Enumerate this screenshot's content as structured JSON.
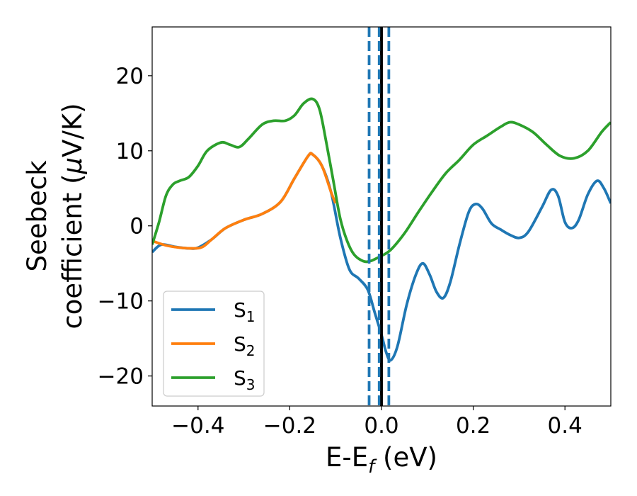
{
  "chart_data": {
    "type": "line",
    "xlabel": {
      "main": "E-E",
      "sub": "f",
      "rest": " (eV)"
    },
    "ylabel": {
      "line1": "Seebeck",
      "line2_pre": "coefficient  (",
      "mu": "μ",
      "line2_post": "V/K)"
    },
    "xlim": [
      -0.5,
      0.5
    ],
    "ylim": [
      -24,
      26.5
    ],
    "x_ticks": [
      -0.4,
      -0.2,
      0.0,
      0.2,
      0.4
    ],
    "x_tick_labels": [
      "−0.4",
      "−0.2",
      "0.0",
      "0.2",
      "0.4"
    ],
    "y_ticks": [
      -20,
      -10,
      0,
      10,
      20
    ],
    "y_tick_labels": [
      "−20",
      "−10",
      "0",
      "10",
      "20"
    ],
    "grid": false,
    "legend_placement": "lower-left",
    "vlines": [
      {
        "x": 0.0,
        "style": "solid",
        "color": "#000000"
      },
      {
        "x": -0.027,
        "style": "dashed",
        "color": "#1f77b4"
      },
      {
        "x": -0.005,
        "style": "dashed",
        "color": "#1f77b4"
      },
      {
        "x": 0.016,
        "style": "dashed",
        "color": "#1f77b4"
      }
    ],
    "series": [
      {
        "name": "S",
        "sub": "1",
        "color": "#1f77b4",
        "points": [
          [
            -0.5,
            -3.5
          ],
          [
            -0.48,
            -2.5
          ],
          [
            -0.45,
            -2.8
          ],
          [
            -0.42,
            -3.0
          ],
          [
            -0.4,
            -2.9
          ],
          [
            -0.37,
            -1.8
          ],
          [
            -0.34,
            -0.3
          ],
          [
            -0.3,
            0.8
          ],
          [
            -0.26,
            1.6
          ],
          [
            -0.22,
            3.2
          ],
          [
            -0.19,
            6.3
          ],
          [
            -0.16,
            9.3
          ],
          [
            -0.15,
            9.5
          ],
          [
            -0.13,
            8.0
          ],
          [
            -0.11,
            4.5
          ],
          [
            -0.09,
            -1.5
          ],
          [
            -0.07,
            -5.8
          ],
          [
            -0.05,
            -7.0
          ],
          [
            -0.03,
            -8.5
          ],
          [
            -0.015,
            -11.5
          ],
          [
            0.0,
            -14.5
          ],
          [
            0.01,
            -16.8
          ],
          [
            0.02,
            -17.9
          ],
          [
            0.035,
            -16.0
          ],
          [
            0.055,
            -10.5
          ],
          [
            0.075,
            -6.5
          ],
          [
            0.09,
            -5.0
          ],
          [
            0.105,
            -6.5
          ],
          [
            0.12,
            -8.8
          ],
          [
            0.135,
            -9.6
          ],
          [
            0.15,
            -7.5
          ],
          [
            0.17,
            -2.5
          ],
          [
            0.19,
            1.8
          ],
          [
            0.205,
            2.9
          ],
          [
            0.22,
            2.3
          ],
          [
            0.24,
            0.3
          ],
          [
            0.26,
            -0.5
          ],
          [
            0.28,
            -1.2
          ],
          [
            0.3,
            -1.6
          ],
          [
            0.32,
            -0.8
          ],
          [
            0.35,
            2.5
          ],
          [
            0.37,
            4.8
          ],
          [
            0.385,
            4.0
          ],
          [
            0.4,
            0.5
          ],
          [
            0.415,
            -0.3
          ],
          [
            0.43,
            0.8
          ],
          [
            0.45,
            4.2
          ],
          [
            0.47,
            6.0
          ],
          [
            0.485,
            5.0
          ],
          [
            0.5,
            3.0
          ]
        ]
      },
      {
        "name": "S",
        "sub": "2",
        "color": "#ff7f0e",
        "points": [
          [
            -0.5,
            -2.0
          ],
          [
            -0.47,
            -2.6
          ],
          [
            -0.44,
            -2.9
          ],
          [
            -0.41,
            -3.0
          ],
          [
            -0.39,
            -2.8
          ],
          [
            -0.37,
            -1.8
          ],
          [
            -0.34,
            -0.3
          ],
          [
            -0.3,
            0.8
          ],
          [
            -0.26,
            1.6
          ],
          [
            -0.22,
            3.2
          ],
          [
            -0.19,
            6.3
          ],
          [
            -0.16,
            9.3
          ],
          [
            -0.15,
            9.5
          ],
          [
            -0.13,
            8.0
          ],
          [
            -0.11,
            4.5
          ],
          [
            -0.1,
            3.0
          ]
        ]
      },
      {
        "name": "S",
        "sub": "3",
        "color": "#2ca02c",
        "points": [
          [
            -0.5,
            -2.5
          ],
          [
            -0.485,
            0.5
          ],
          [
            -0.47,
            4.0
          ],
          [
            -0.455,
            5.5
          ],
          [
            -0.44,
            6.0
          ],
          [
            -0.42,
            6.5
          ],
          [
            -0.4,
            8.0
          ],
          [
            -0.38,
            10.0
          ],
          [
            -0.35,
            11.1
          ],
          [
            -0.33,
            10.8
          ],
          [
            -0.31,
            10.5
          ],
          [
            -0.29,
            11.6
          ],
          [
            -0.26,
            13.5
          ],
          [
            -0.235,
            14.0
          ],
          [
            -0.21,
            14.0
          ],
          [
            -0.19,
            14.7
          ],
          [
            -0.17,
            16.3
          ],
          [
            -0.15,
            16.9
          ],
          [
            -0.135,
            15.5
          ],
          [
            -0.12,
            11.0
          ],
          [
            -0.105,
            6.0
          ],
          [
            -0.09,
            1.0
          ],
          [
            -0.075,
            -2.0
          ],
          [
            -0.06,
            -3.8
          ],
          [
            -0.04,
            -4.7
          ],
          [
            -0.025,
            -4.7
          ],
          [
            -0.01,
            -4.3
          ],
          [
            0.0,
            -4.0
          ],
          [
            0.02,
            -3.2
          ],
          [
            0.05,
            -1.0
          ],
          [
            0.08,
            1.8
          ],
          [
            0.11,
            4.5
          ],
          [
            0.14,
            7.0
          ],
          [
            0.17,
            8.8
          ],
          [
            0.2,
            10.8
          ],
          [
            0.23,
            12.0
          ],
          [
            0.26,
            13.2
          ],
          [
            0.28,
            13.8
          ],
          [
            0.3,
            13.5
          ],
          [
            0.33,
            12.5
          ],
          [
            0.36,
            10.8
          ],
          [
            0.39,
            9.3
          ],
          [
            0.42,
            9.0
          ],
          [
            0.45,
            10.0
          ],
          [
            0.48,
            12.5
          ],
          [
            0.5,
            13.8
          ]
        ]
      }
    ]
  }
}
